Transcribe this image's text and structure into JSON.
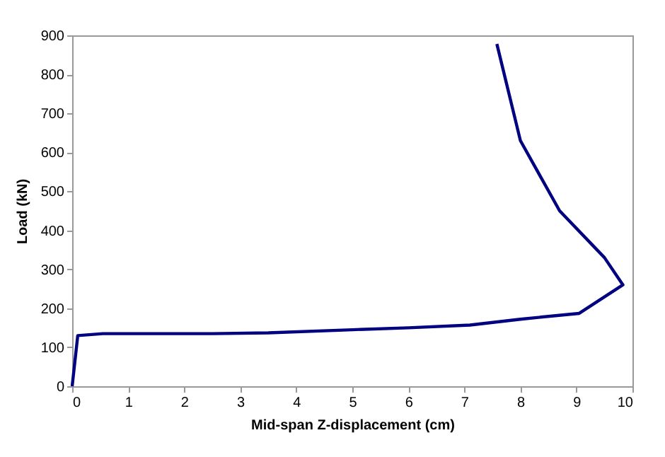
{
  "chart_data": {
    "type": "line",
    "xlabel": "Mid-span Z-displacement (cm)",
    "ylabel": "Load (kN)",
    "x": [
      0,
      0.1,
      0.55,
      2.5,
      3.5,
      5,
      6,
      7.1,
      8,
      9.05,
      9.83,
      9.5,
      8.7,
      8.0,
      7.58
    ],
    "series": [
      {
        "color": "#000080",
        "values": [
          0,
          130,
          135,
          135,
          137,
          145,
          150,
          157,
          172,
          187,
          260,
          330,
          450,
          630,
          878
        ]
      }
    ],
    "xlim": [
      0,
      10
    ],
    "xticks": [
      0,
      1,
      2,
      3,
      4,
      5,
      6,
      7,
      8,
      9,
      10
    ],
    "ylim": [
      0,
      900
    ],
    "yticks": [
      0,
      100,
      200,
      300,
      400,
      500,
      600,
      700,
      800,
      900
    ],
    "grid": false,
    "marker": "none",
    "line_style": "solid"
  }
}
